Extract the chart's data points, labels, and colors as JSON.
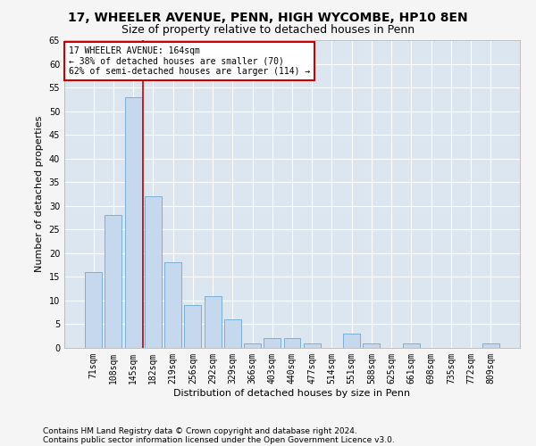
{
  "title1": "17, WHEELER AVENUE, PENN, HIGH WYCOMBE, HP10 8EN",
  "title2": "Size of property relative to detached houses in Penn",
  "xlabel": "Distribution of detached houses by size in Penn",
  "ylabel": "Number of detached properties",
  "categories": [
    "71sqm",
    "108sqm",
    "145sqm",
    "182sqm",
    "219sqm",
    "256sqm",
    "292sqm",
    "329sqm",
    "366sqm",
    "403sqm",
    "440sqm",
    "477sqm",
    "514sqm",
    "551sqm",
    "588sqm",
    "625sqm",
    "661sqm",
    "698sqm",
    "735sqm",
    "772sqm",
    "809sqm"
  ],
  "values": [
    16,
    28,
    53,
    32,
    18,
    9,
    11,
    6,
    1,
    2,
    2,
    1,
    0,
    3,
    1,
    0,
    1,
    0,
    0,
    0,
    1
  ],
  "bar_color": "#c5d8ee",
  "bar_edge_color": "#7aafd4",
  "vline_x": 2.5,
  "vline_color": "#cc0000",
  "annotation_text": "17 WHEELER AVENUE: 164sqm\n← 38% of detached houses are smaller (70)\n62% of semi-detached houses are larger (114) →",
  "annotation_box_color": "#ffffff",
  "annotation_edge_color": "#cc0000",
  "ylim": [
    0,
    65
  ],
  "yticks": [
    0,
    5,
    10,
    15,
    20,
    25,
    30,
    35,
    40,
    45,
    50,
    55,
    60,
    65
  ],
  "background_color": "#dce6f0",
  "grid_color": "#ffffff",
  "fig_bg_color": "#f5f5f5",
  "footer1": "Contains HM Land Registry data © Crown copyright and database right 2024.",
  "footer2": "Contains public sector information licensed under the Open Government Licence v3.0.",
  "title1_fontsize": 10,
  "title2_fontsize": 9,
  "tick_fontsize": 7,
  "axis_label_fontsize": 8,
  "footer_fontsize": 6.5
}
